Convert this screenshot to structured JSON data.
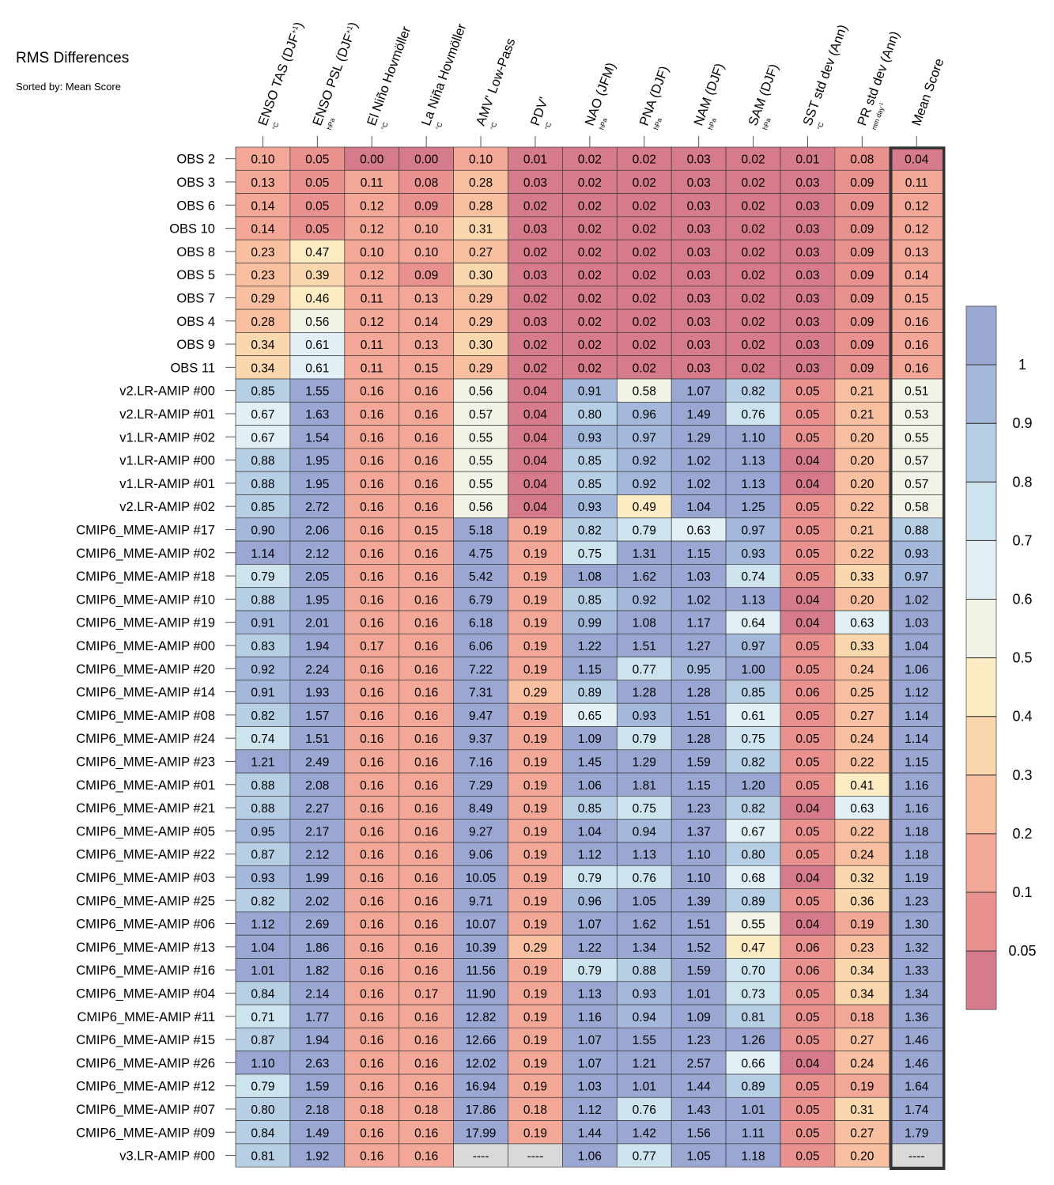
{
  "chart_data": {
    "type": "heatmap",
    "title": "RMS Differences",
    "subtitle": "Sorted by: Mean Score",
    "columns": [
      {
        "label": "ENSO TAS (DJF",
        "sup": "+1",
        "close": ")",
        "unit": "°C"
      },
      {
        "label": "ENSO PSL (DJF",
        "sup": "+1",
        "close": ")",
        "unit": "hPa"
      },
      {
        "label": "El Niño Hovmöller",
        "unit": "°C"
      },
      {
        "label": "La Niña Hovmöller",
        "unit": "°C"
      },
      {
        "label": "AMV' Low-Pass",
        "unit": "°C"
      },
      {
        "label": "PDV'",
        "unit": "°C"
      },
      {
        "label": "NAO (JFM)",
        "unit": "hPa"
      },
      {
        "label": "PNA (DJF)",
        "unit": "hPa"
      },
      {
        "label": "NAM (DJF)",
        "unit": "hPa"
      },
      {
        "label": "SAM (DJF)",
        "unit": "hPa"
      },
      {
        "label": "SST std dev (Ann)",
        "unit": "°C"
      },
      {
        "label": "PR std dev (Ann)",
        "unit": "mm day",
        "unit_sup": "-1"
      },
      {
        "label": "Mean Score",
        "unit": ""
      }
    ],
    "rows": [
      {
        "name": "OBS 2",
        "values": [
          "0.10",
          "0.05",
          "0.00",
          "0.00",
          "0.10",
          "0.01",
          "0.02",
          "0.02",
          "0.03",
          "0.02",
          "0.01",
          "0.08",
          "0.04"
        ]
      },
      {
        "name": "OBS 3",
        "values": [
          "0.13",
          "0.05",
          "0.11",
          "0.08",
          "0.28",
          "0.03",
          "0.02",
          "0.02",
          "0.03",
          "0.02",
          "0.03",
          "0.09",
          "0.11"
        ]
      },
      {
        "name": "OBS 6",
        "values": [
          "0.14",
          "0.05",
          "0.12",
          "0.09",
          "0.28",
          "0.02",
          "0.02",
          "0.02",
          "0.03",
          "0.02",
          "0.03",
          "0.09",
          "0.12"
        ]
      },
      {
        "name": "OBS 10",
        "values": [
          "0.14",
          "0.05",
          "0.12",
          "0.10",
          "0.31",
          "0.03",
          "0.02",
          "0.02",
          "0.03",
          "0.02",
          "0.03",
          "0.09",
          "0.12"
        ]
      },
      {
        "name": "OBS 8",
        "values": [
          "0.23",
          "0.47",
          "0.10",
          "0.10",
          "0.27",
          "0.02",
          "0.02",
          "0.02",
          "0.03",
          "0.02",
          "0.03",
          "0.09",
          "0.13"
        ]
      },
      {
        "name": "OBS 5",
        "values": [
          "0.23",
          "0.39",
          "0.12",
          "0.09",
          "0.30",
          "0.03",
          "0.02",
          "0.02",
          "0.03",
          "0.02",
          "0.03",
          "0.09",
          "0.14"
        ]
      },
      {
        "name": "OBS 7",
        "values": [
          "0.29",
          "0.46",
          "0.11",
          "0.13",
          "0.29",
          "0.02",
          "0.02",
          "0.02",
          "0.03",
          "0.02",
          "0.03",
          "0.09",
          "0.15"
        ]
      },
      {
        "name": "OBS 4",
        "values": [
          "0.28",
          "0.56",
          "0.12",
          "0.14",
          "0.29",
          "0.03",
          "0.02",
          "0.02",
          "0.03",
          "0.02",
          "0.03",
          "0.09",
          "0.16"
        ]
      },
      {
        "name": "OBS 9",
        "values": [
          "0.34",
          "0.61",
          "0.11",
          "0.13",
          "0.30",
          "0.02",
          "0.02",
          "0.02",
          "0.03",
          "0.02",
          "0.03",
          "0.09",
          "0.16"
        ]
      },
      {
        "name": "OBS 11",
        "values": [
          "0.34",
          "0.61",
          "0.11",
          "0.15",
          "0.29",
          "0.02",
          "0.02",
          "0.02",
          "0.03",
          "0.02",
          "0.03",
          "0.09",
          "0.16"
        ]
      },
      {
        "name": "v2.LR-AMIP  #00",
        "values": [
          "0.85",
          "1.55",
          "0.16",
          "0.16",
          "0.56",
          "0.04",
          "0.91",
          "0.58",
          "1.07",
          "0.82",
          "0.05",
          "0.21",
          "0.51"
        ]
      },
      {
        "name": "v2.LR-AMIP  #01",
        "values": [
          "0.67",
          "1.63",
          "0.16",
          "0.16",
          "0.57",
          "0.04",
          "0.80",
          "0.96",
          "1.49",
          "0.76",
          "0.05",
          "0.21",
          "0.53"
        ]
      },
      {
        "name": "v1.LR-AMIP  #02",
        "values": [
          "0.67",
          "1.54",
          "0.16",
          "0.16",
          "0.55",
          "0.04",
          "0.93",
          "0.97",
          "1.29",
          "1.10",
          "0.05",
          "0.20",
          "0.55"
        ]
      },
      {
        "name": "v1.LR-AMIP  #00",
        "values": [
          "0.88",
          "1.95",
          "0.16",
          "0.16",
          "0.55",
          "0.04",
          "0.85",
          "0.92",
          "1.02",
          "1.13",
          "0.04",
          "0.20",
          "0.57"
        ]
      },
      {
        "name": "v1.LR-AMIP  #01",
        "values": [
          "0.88",
          "1.95",
          "0.16",
          "0.16",
          "0.55",
          "0.04",
          "0.85",
          "0.92",
          "1.02",
          "1.13",
          "0.04",
          "0.20",
          "0.57"
        ]
      },
      {
        "name": "v2.LR-AMIP  #02",
        "values": [
          "0.85",
          "2.72",
          "0.16",
          "0.16",
          "0.56",
          "0.04",
          "0.93",
          "0.49",
          "1.04",
          "1.25",
          "0.05",
          "0.22",
          "0.58"
        ]
      },
      {
        "name": "CMIP6_MME-AMIP  #17",
        "values": [
          "0.90",
          "2.06",
          "0.16",
          "0.15",
          "5.18",
          "0.19",
          "0.82",
          "0.79",
          "0.63",
          "0.97",
          "0.05",
          "0.21",
          "0.88"
        ]
      },
      {
        "name": "CMIP6_MME-AMIP  #02",
        "values": [
          "1.14",
          "2.12",
          "0.16",
          "0.16",
          "4.75",
          "0.19",
          "0.75",
          "1.31",
          "1.15",
          "0.93",
          "0.05",
          "0.22",
          "0.93"
        ]
      },
      {
        "name": "CMIP6_MME-AMIP  #18",
        "values": [
          "0.79",
          "2.05",
          "0.16",
          "0.16",
          "5.42",
          "0.19",
          "1.08",
          "1.62",
          "1.03",
          "0.74",
          "0.05",
          "0.33",
          "0.97"
        ]
      },
      {
        "name": "CMIP6_MME-AMIP  #10",
        "values": [
          "0.88",
          "1.95",
          "0.16",
          "0.16",
          "6.79",
          "0.19",
          "0.85",
          "0.92",
          "1.02",
          "1.13",
          "0.04",
          "0.20",
          "1.02"
        ]
      },
      {
        "name": "CMIP6_MME-AMIP  #19",
        "values": [
          "0.91",
          "2.01",
          "0.16",
          "0.16",
          "6.18",
          "0.19",
          "0.99",
          "1.08",
          "1.17",
          "0.64",
          "0.04",
          "0.63",
          "1.03"
        ]
      },
      {
        "name": "CMIP6_MME-AMIP  #00",
        "values": [
          "0.83",
          "1.94",
          "0.17",
          "0.16",
          "6.06",
          "0.19",
          "1.22",
          "1.51",
          "1.27",
          "0.97",
          "0.05",
          "0.33",
          "1.04"
        ]
      },
      {
        "name": "CMIP6_MME-AMIP  #20",
        "values": [
          "0.92",
          "2.24",
          "0.16",
          "0.16",
          "7.22",
          "0.19",
          "1.15",
          "0.77",
          "0.95",
          "1.00",
          "0.05",
          "0.24",
          "1.06"
        ]
      },
      {
        "name": "CMIP6_MME-AMIP  #14",
        "values": [
          "0.91",
          "1.93",
          "0.16",
          "0.16",
          "7.31",
          "0.29",
          "0.89",
          "1.28",
          "1.28",
          "0.85",
          "0.06",
          "0.25",
          "1.12"
        ]
      },
      {
        "name": "CMIP6_MME-AMIP  #08",
        "values": [
          "0.82",
          "1.57",
          "0.16",
          "0.16",
          "9.47",
          "0.19",
          "0.65",
          "0.93",
          "1.51",
          "0.61",
          "0.05",
          "0.27",
          "1.14"
        ]
      },
      {
        "name": "CMIP6_MME-AMIP  #24",
        "values": [
          "0.74",
          "1.51",
          "0.16",
          "0.16",
          "9.37",
          "0.19",
          "1.09",
          "0.79",
          "1.28",
          "0.75",
          "0.05",
          "0.24",
          "1.14"
        ]
      },
      {
        "name": "CMIP6_MME-AMIP  #23",
        "values": [
          "1.21",
          "2.49",
          "0.16",
          "0.16",
          "7.16",
          "0.19",
          "1.45",
          "1.29",
          "1.59",
          "0.82",
          "0.05",
          "0.22",
          "1.15"
        ]
      },
      {
        "name": "CMIP6_MME-AMIP  #01",
        "values": [
          "0.88",
          "2.08",
          "0.16",
          "0.16",
          "7.29",
          "0.19",
          "1.06",
          "1.81",
          "1.15",
          "1.20",
          "0.05",
          "0.41",
          "1.16"
        ]
      },
      {
        "name": "CMIP6_MME-AMIP  #21",
        "values": [
          "0.88",
          "2.27",
          "0.16",
          "0.16",
          "8.49",
          "0.19",
          "0.85",
          "0.75",
          "1.23",
          "0.82",
          "0.04",
          "0.63",
          "1.16"
        ]
      },
      {
        "name": "CMIP6_MME-AMIP  #05",
        "values": [
          "0.95",
          "2.17",
          "0.16",
          "0.16",
          "9.27",
          "0.19",
          "1.04",
          "0.94",
          "1.37",
          "0.67",
          "0.05",
          "0.22",
          "1.18"
        ]
      },
      {
        "name": "CMIP6_MME-AMIP  #22",
        "values": [
          "0.87",
          "2.12",
          "0.16",
          "0.16",
          "9.06",
          "0.19",
          "1.12",
          "1.13",
          "1.10",
          "0.80",
          "0.05",
          "0.24",
          "1.18"
        ]
      },
      {
        "name": "CMIP6_MME-AMIP  #03",
        "values": [
          "0.93",
          "1.99",
          "0.16",
          "0.16",
          "10.05",
          "0.19",
          "0.79",
          "0.76",
          "1.10",
          "0.68",
          "0.04",
          "0.32",
          "1.19"
        ]
      },
      {
        "name": "CMIP6_MME-AMIP  #25",
        "values": [
          "0.82",
          "2.02",
          "0.16",
          "0.16",
          "9.71",
          "0.19",
          "0.96",
          "1.05",
          "1.39",
          "0.89",
          "0.05",
          "0.36",
          "1.23"
        ]
      },
      {
        "name": "CMIP6_MME-AMIP  #06",
        "values": [
          "1.12",
          "2.69",
          "0.16",
          "0.16",
          "10.07",
          "0.19",
          "1.07",
          "1.62",
          "1.51",
          "0.55",
          "0.04",
          "0.19",
          "1.30"
        ]
      },
      {
        "name": "CMIP6_MME-AMIP  #13",
        "values": [
          "1.04",
          "1.86",
          "0.16",
          "0.16",
          "10.39",
          "0.29",
          "1.22",
          "1.34",
          "1.52",
          "0.47",
          "0.06",
          "0.23",
          "1.32"
        ]
      },
      {
        "name": "CMIP6_MME-AMIP  #16",
        "values": [
          "1.01",
          "1.82",
          "0.16",
          "0.16",
          "11.56",
          "0.19",
          "0.79",
          "0.88",
          "1.59",
          "0.70",
          "0.06",
          "0.34",
          "1.33"
        ]
      },
      {
        "name": "CMIP6_MME-AMIP  #04",
        "values": [
          "0.84",
          "2.14",
          "0.16",
          "0.17",
          "11.90",
          "0.19",
          "1.13",
          "0.93",
          "1.01",
          "0.73",
          "0.05",
          "0.34",
          "1.34"
        ]
      },
      {
        "name": "CMIP6_MME-AMIP  #11",
        "values": [
          "0.71",
          "1.77",
          "0.16",
          "0.16",
          "12.82",
          "0.19",
          "1.16",
          "0.94",
          "1.09",
          "0.81",
          "0.05",
          "0.18",
          "1.36"
        ]
      },
      {
        "name": "CMIP6_MME-AMIP  #15",
        "values": [
          "0.87",
          "1.94",
          "0.16",
          "0.16",
          "12.66",
          "0.19",
          "1.07",
          "1.55",
          "1.23",
          "1.26",
          "0.05",
          "0.27",
          "1.46"
        ]
      },
      {
        "name": "CMIP6_MME-AMIP  #26",
        "values": [
          "1.10",
          "2.63",
          "0.16",
          "0.16",
          "12.02",
          "0.19",
          "1.07",
          "1.21",
          "2.57",
          "0.66",
          "0.04",
          "0.24",
          "1.46"
        ]
      },
      {
        "name": "CMIP6_MME-AMIP  #12",
        "values": [
          "0.79",
          "1.59",
          "0.16",
          "0.16",
          "16.94",
          "0.19",
          "1.03",
          "1.01",
          "1.44",
          "0.89",
          "0.05",
          "0.19",
          "1.64"
        ]
      },
      {
        "name": "CMIP6_MME-AMIP  #07",
        "values": [
          "0.80",
          "2.18",
          "0.18",
          "0.18",
          "17.86",
          "0.18",
          "1.12",
          "0.76",
          "1.43",
          "1.01",
          "0.05",
          "0.31",
          "1.74"
        ]
      },
      {
        "name": "CMIP6_MME-AMIP  #09",
        "values": [
          "0.84",
          "1.49",
          "0.16",
          "0.16",
          "17.99",
          "0.19",
          "1.44",
          "1.42",
          "1.56",
          "1.11",
          "0.05",
          "0.27",
          "1.79"
        ]
      },
      {
        "name": "v3.LR-AMIP  #00",
        "values": [
          "0.81",
          "1.92",
          "0.16",
          "0.16",
          "----",
          "----",
          "1.06",
          "0.77",
          "1.05",
          "1.18",
          "0.05",
          "0.20",
          "----"
        ]
      }
    ],
    "colorbar": {
      "levels": [
        0.05,
        0.1,
        0.2,
        0.3,
        0.4,
        0.5,
        0.6,
        0.7,
        0.8,
        0.9,
        1
      ],
      "tick_labels": [
        "0.05",
        "0.1",
        "0.2",
        "0.3",
        "0.4",
        "0.5",
        "0.6",
        "0.7",
        "0.8",
        "0.9",
        "1"
      ],
      "colors": [
        "#d67b8b",
        "#e8918e",
        "#f2a797",
        "#f8bfa0",
        "#fbd7ad",
        "#fcecc4",
        "#f3f2e7",
        "#e2eff4",
        "#cde3ee",
        "#b6cfe5",
        "#a3b8da",
        "#9aa7d2"
      ],
      "missing_color": "#d9d9d9"
    },
    "highlighted_column": "Mean Score"
  }
}
